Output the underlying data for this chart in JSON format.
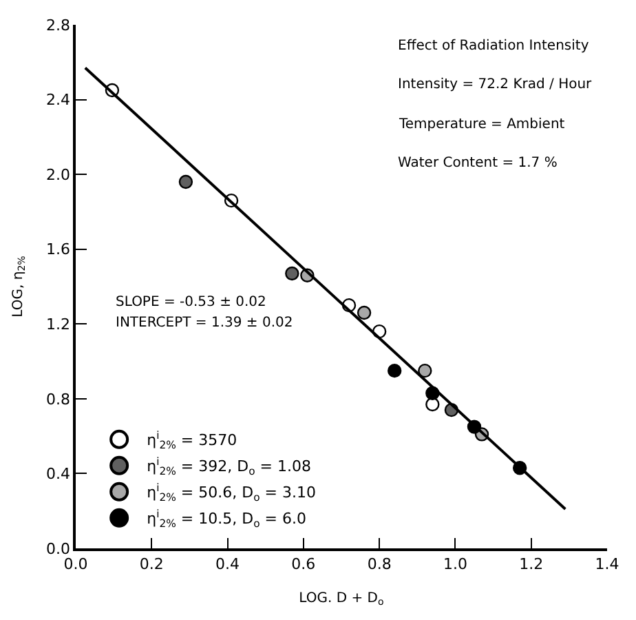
{
  "chart_data": {
    "type": "scatter",
    "xlabel": "LOG. D + D$_{o}$",
    "ylabel": "LOG, η$_{2%}$",
    "xlim": [
      0,
      1.4
    ],
    "ylim": [
      0,
      2.8
    ],
    "xticks": [
      {
        "value": 0,
        "label": "0.0"
      },
      {
        "value": 0.2,
        "label": "0.2"
      },
      {
        "value": 0.4,
        "label": "0.4"
      },
      {
        "value": 0.6,
        "label": "0.6"
      },
      {
        "value": 0.8,
        "label": "0.8"
      },
      {
        "value": 1.0,
        "label": "1.0"
      },
      {
        "value": 1.2,
        "label": "1.2"
      },
      {
        "value": 1.4,
        "label": "1.4"
      }
    ],
    "yticks": [
      {
        "value": 0,
        "label": "0.0"
      },
      0.4,
      0.8,
      1.2,
      1.6,
      {
        "value": 2.0,
        "label": "2.0"
      },
      2.4,
      2.8
    ],
    "legend": "bottom left",
    "marker": "circle",
    "series": [
      {
        "name": "η$^{i}$$_{2%}$ = 3570",
        "color": "#ffffff",
        "x": [
          0.096,
          0.41,
          0.72,
          0.8,
          0.94
        ],
        "values": [
          2.45,
          1.86,
          1.3,
          1.16,
          0.77
        ]
      },
      {
        "name": "η$^{i}$$_{2%}$ = 392, D$_{o}$ = 1.08",
        "color": "#606060",
        "x": [
          0.29,
          0.57,
          0.99
        ],
        "values": [
          1.96,
          1.47,
          0.74
        ]
      },
      {
        "name": "η$^{i}$$_{2%}$ = 50.6, D$_{o}$ = 3.10",
        "color": "#a8a8a8",
        "x": [
          0.61,
          0.76,
          0.92,
          1.07
        ],
        "values": [
          1.46,
          1.26,
          0.95,
          0.61
        ]
      },
      {
        "name": "η$^{i}$$_{2%}$ = 10.5, D$_{o}$ = 6.0",
        "color": "#000000",
        "x": [
          0.84,
          0.94,
          1.05,
          1.17
        ],
        "values": [
          0.95,
          0.83,
          0.65,
          0.43
        ]
      },
      {
        "type": "line",
        "color": "#000000",
        "line_style": "solid",
        "marker": "none",
        "x": [
          0.025,
          1.29
        ],
        "values": [
          2.57,
          0.21
        ]
      }
    ],
    "annotations": [
      "Effect of Radiation Intensity",
      "Intensity = 72.2 Krad / Hour",
      "Temperature = Ambient",
      "Water Content = 1.7 %",
      "SLOPE = -0.53 ± 0.02",
      "INTERCEPT = 1.39 ± 0.02"
    ]
  }
}
